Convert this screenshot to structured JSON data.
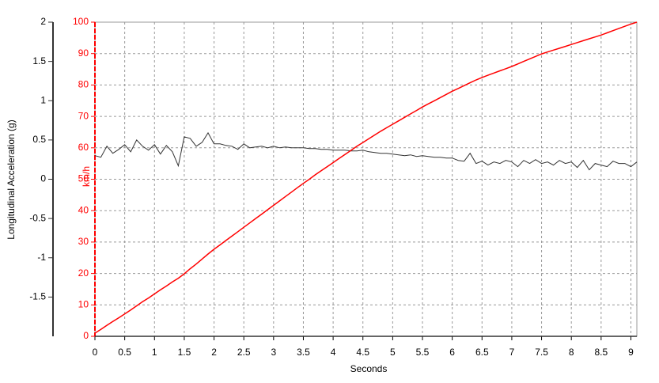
{
  "chart_data": {
    "type": "line",
    "xlabel": "Seconds",
    "ylabel": "Longitudinal Acceleration (g)",
    "y2label": "km/h",
    "xlim": [
      0,
      9.1
    ],
    "xticks": [
      0,
      0.5,
      1,
      1.5,
      2,
      2.5,
      3,
      3.5,
      4,
      4.5,
      5,
      5.5,
      6,
      6.5,
      7,
      7.5,
      8,
      8.5,
      9
    ],
    "ylim": [
      -2,
      2
    ],
    "yticks": [
      2,
      1.5,
      1,
      0.5,
      0,
      -0.5,
      -1,
      -1.5
    ],
    "y2lim": [
      0,
      100
    ],
    "y2ticks": [
      0,
      10,
      20,
      30,
      40,
      50,
      60,
      70,
      80,
      90,
      100
    ],
    "grid": true,
    "x": [
      0,
      0.1,
      0.2,
      0.3,
      0.4,
      0.5,
      0.6,
      0.7,
      0.8,
      0.9,
      1,
      1.1,
      1.2,
      1.3,
      1.4,
      1.5,
      1.6,
      1.7,
      1.8,
      1.9,
      2,
      2.1,
      2.2,
      2.3,
      2.4,
      2.5,
      2.6,
      2.7,
      2.8,
      2.9,
      3,
      3.1,
      3.2,
      3.3,
      3.4,
      3.5,
      3.6,
      3.7,
      3.8,
      3.9,
      4,
      4.1,
      4.2,
      4.3,
      4.4,
      4.5,
      4.6,
      4.7,
      4.8,
      4.9,
      5,
      5.1,
      5.2,
      5.3,
      5.4,
      5.5,
      5.6,
      5.7,
      5.8,
      5.9,
      6,
      6.1,
      6.2,
      6.3,
      6.4,
      6.5,
      6.6,
      6.7,
      6.8,
      6.9,
      7,
      7.1,
      7.2,
      7.3,
      7.4,
      7.5,
      7.6,
      7.7,
      7.8,
      7.9,
      8,
      8.1,
      8.2,
      8.3,
      8.4,
      8.5,
      8.6,
      8.7,
      8.8,
      8.9,
      9,
      9.1
    ],
    "series": [
      {
        "color": "#333333",
        "values": [
          0.3,
          0.28,
          0.42,
          0.33,
          0.38,
          0.44,
          0.35,
          0.5,
          0.42,
          0.37,
          0.44,
          0.32,
          0.43,
          0.35,
          0.17,
          0.54,
          0.52,
          0.42,
          0.47,
          0.59,
          0.45,
          0.45,
          0.43,
          0.42,
          0.38,
          0.45,
          0.4,
          0.41,
          0.42,
          0.4,
          0.42,
          0.4,
          0.41,
          0.4,
          0.4,
          0.4,
          0.39,
          0.39,
          0.38,
          0.38,
          0.37,
          0.37,
          0.37,
          0.36,
          0.36,
          0.37,
          0.35,
          0.34,
          0.33,
          0.33,
          0.32,
          0.31,
          0.3,
          0.31,
          0.29,
          0.3,
          0.29,
          0.28,
          0.28,
          0.27,
          0.27,
          0.24,
          0.23,
          0.33,
          0.2,
          0.23,
          0.18,
          0.22,
          0.2,
          0.24,
          0.22,
          0.16,
          0.24,
          0.2,
          0.25,
          0.2,
          0.22,
          0.18,
          0.24,
          0.2,
          0.22,
          0.15,
          0.24,
          0.12,
          0.2,
          0.18,
          0.16,
          0.23,
          0.2,
          0.2,
          0.16,
          0.22
        ]
      },
      {
        "color": "#ff0000",
        "axis": "y2",
        "values": [
          1,
          2.2,
          3.5,
          4.7,
          5.9,
          7.1,
          8.4,
          9.7,
          11,
          12.2,
          13.5,
          14.8,
          16,
          17.3,
          18.5,
          19.9,
          21.5,
          23,
          24.6,
          26.2,
          27.7,
          29.1,
          30.5,
          31.9,
          33.3,
          34.7,
          36.1,
          37.5,
          38.9,
          40.3,
          41.7,
          43.1,
          44.5,
          45.9,
          47.3,
          48.7,
          50,
          51.4,
          52.7,
          54,
          55.3,
          56.6,
          57.9,
          59.2,
          60.5,
          61.7,
          62.9,
          64.1,
          65.3,
          66.4,
          67.5,
          68.6,
          69.7,
          70.8,
          71.9,
          73,
          74,
          75,
          76,
          77,
          78,
          78.9,
          79.8,
          80.7,
          81.6,
          82.4,
          83.1,
          83.8,
          84.5,
          85.2,
          85.9,
          86.7,
          87.5,
          88.3,
          89.1,
          89.9,
          90.5,
          91.1,
          91.7,
          92.3,
          92.9,
          93.5,
          94.1,
          94.7,
          95.3,
          95.9,
          96.6,
          97.3,
          98,
          98.7,
          99.4,
          100
        ]
      }
    ]
  }
}
